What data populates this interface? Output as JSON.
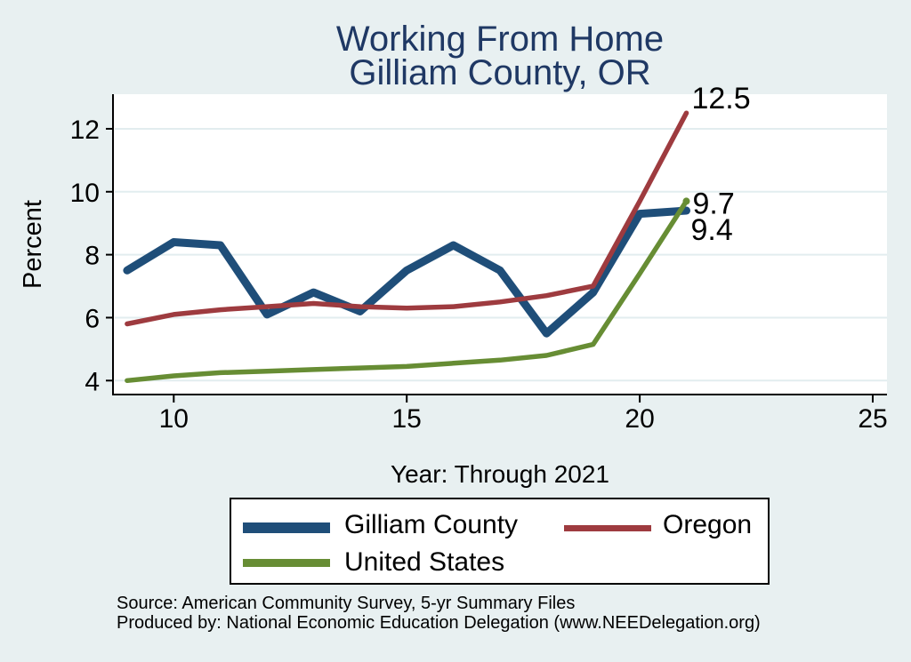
{
  "title": {
    "line1": "Working From Home",
    "line2": "Gilliam County, OR"
  },
  "chart_data": {
    "type": "line",
    "x": [
      9,
      10,
      11,
      12,
      13,
      14,
      15,
      16,
      17,
      18,
      19,
      20,
      21
    ],
    "series": [
      {
        "name": "Gilliam County",
        "color": "#1F4E79",
        "stroke_width": 9,
        "values": [
          7.5,
          8.4,
          8.3,
          6.1,
          6.8,
          6.2,
          7.5,
          8.3,
          7.5,
          5.5,
          6.8,
          9.3,
          9.4
        ]
      },
      {
        "name": "Oregon",
        "color": "#9E3B3F",
        "stroke_width": 5.5,
        "values": [
          5.8,
          6.1,
          6.25,
          6.35,
          6.45,
          6.35,
          6.3,
          6.35,
          6.5,
          6.7,
          7.0,
          9.7,
          12.5
        ]
      },
      {
        "name": "United States",
        "color": "#678D34",
        "stroke_width": 5.5,
        "end_marker": true,
        "values": [
          4.0,
          4.15,
          4.25,
          4.3,
          4.35,
          4.4,
          4.45,
          4.55,
          4.65,
          4.8,
          5.15,
          7.4,
          9.7
        ]
      }
    ],
    "end_labels": [
      {
        "text": "12.5",
        "series": "Oregon"
      },
      {
        "text": "9.7",
        "series": "United States"
      },
      {
        "text": "9.4",
        "series": "Gilliam County"
      }
    ],
    "xlabel": "Year: Through 2021",
    "ylabel": "Percent",
    "x_ticks": [
      10,
      15,
      20,
      25
    ],
    "y_ticks": [
      4,
      6,
      8,
      10,
      12
    ],
    "xlim": [
      8.7,
      25.3
    ],
    "ylim": [
      3.55,
      13.1
    ],
    "grid": true,
    "legend_position": "bottom"
  },
  "colors": {
    "background": "#E8F0F1",
    "plot_background": "#FFFFFF",
    "gridline": "#E2EDEF",
    "axis": "#000000",
    "title": "#1F3864"
  },
  "footer": {
    "line1": "Source: American Community Survey, 5-yr Summary Files",
    "line2": "Produced by: National Economic Education Delegation (www.NEEDelegation.org)"
  }
}
